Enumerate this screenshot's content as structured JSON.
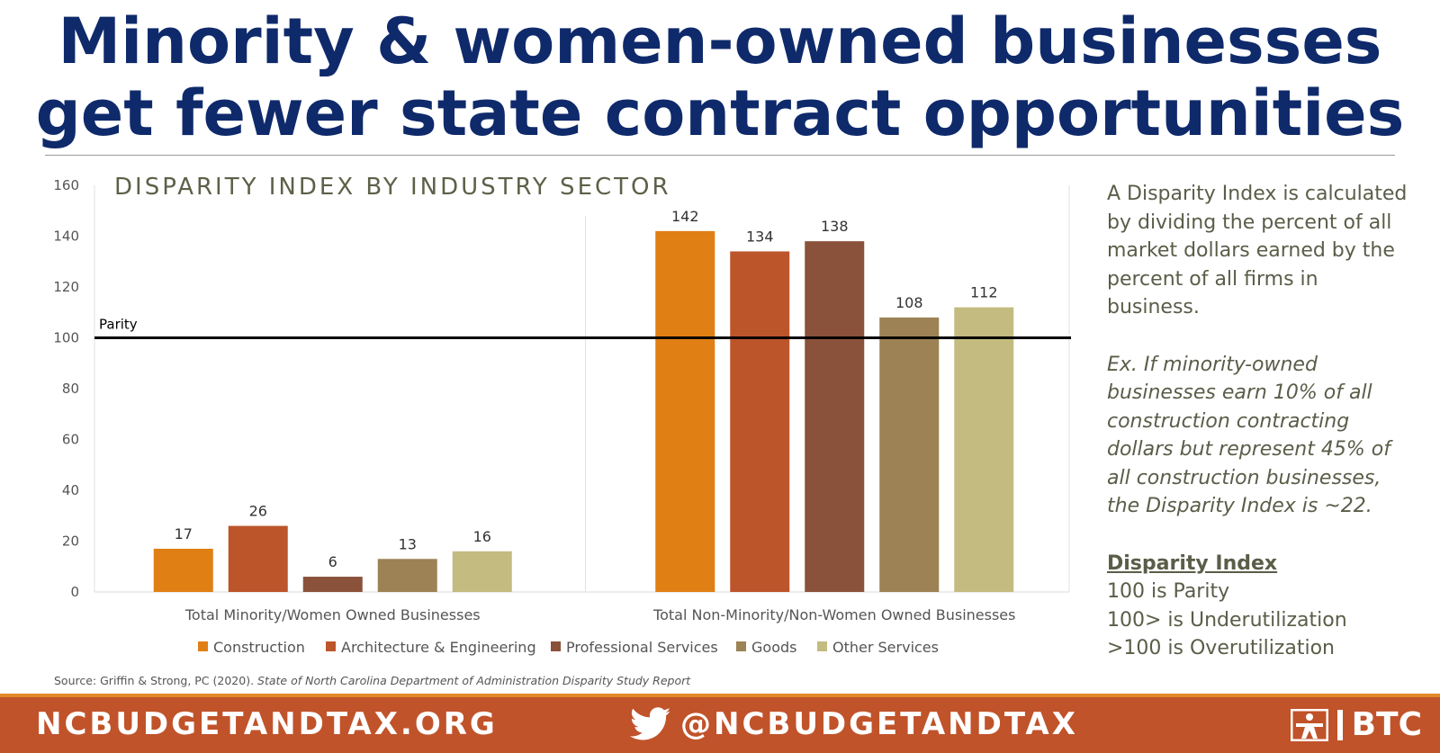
{
  "header": {
    "title_line1": "Minority & women-owned businesses",
    "title_line2": "get fewer state contract opportunities"
  },
  "chart_data": {
    "type": "bar",
    "title": "DISPARITY INDEX BY INDUSTRY SECTOR",
    "categories": [
      "Total Minority/Women Owned Businesses",
      "Total Non-Minority/Non-Women Owned Businesses"
    ],
    "series": [
      {
        "name": "Construction",
        "values": [
          17,
          142
        ],
        "color": "#e07f14"
      },
      {
        "name": "Architecture & Engineering",
        "values": [
          26,
          134
        ],
        "color": "#bd552b"
      },
      {
        "name": "Professional Services",
        "values": [
          6,
          138
        ],
        "color": "#8a523a"
      },
      {
        "name": "Goods",
        "values": [
          13,
          108
        ],
        "color": "#9c8254"
      },
      {
        "name": "Other Services",
        "values": [
          16,
          112
        ],
        "color": "#c3bb80"
      }
    ],
    "ylim": [
      0,
      160
    ],
    "yticks": [
      0,
      20,
      40,
      60,
      80,
      100,
      120,
      140,
      160
    ],
    "reference_line": {
      "value": 100,
      "label": "Parity"
    },
    "legend_position": "bottom"
  },
  "sidebar": {
    "definition": "A Disparity Index is calculated by dividing the percent of all market dollars earned by the percent of all firms in business.",
    "example": "Ex. If minority-owned businesses earn 10% of all construction contracting dollars but represent 45% of all construction businesses, the Disparity Index is ~22.",
    "key_title": "Disparity Index",
    "key_items": [
      "100 is Parity",
      "100> is Underutilization",
      ">100 is Overutilization"
    ]
  },
  "source": {
    "prefix": "Source: Griffin & Strong, PC (2020). ",
    "title": "State of North Carolina Department of Administration Disparity Study Report"
  },
  "footer": {
    "website": "NCBUDGETANDTAX.ORG",
    "twitter_handle": "@NCBUDGETANDTAX",
    "logo_text": "BTC",
    "colors": {
      "background": "#c0532a",
      "accent": "#e08a2a"
    }
  }
}
